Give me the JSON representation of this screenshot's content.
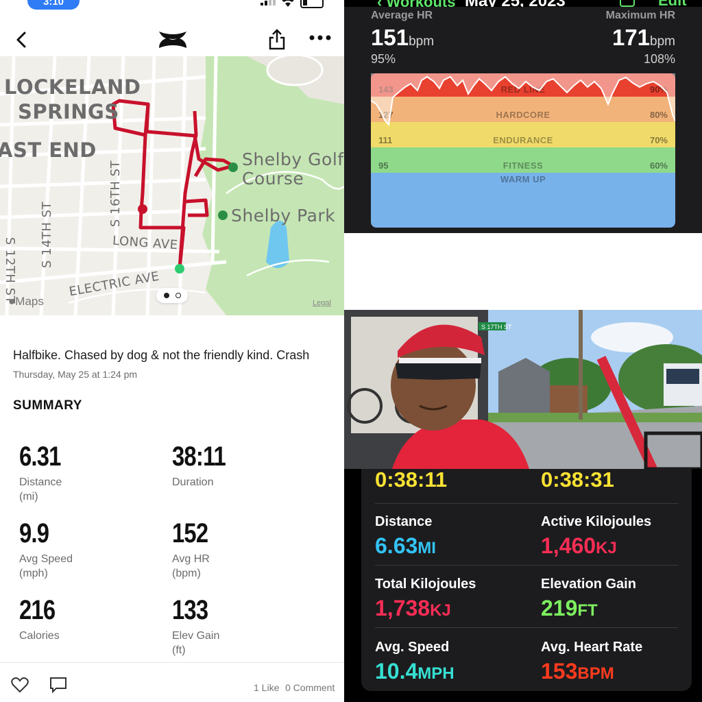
{
  "status_bar": {
    "time": "3:10"
  },
  "left_app": {
    "map": {
      "neighborhoods": [
        "LOCKELAND",
        "SPRINGS",
        "AST END"
      ],
      "streets": [
        "S 16TH ST",
        "S 14TH ST",
        "LONG AVE",
        "ELECTRIC AVE",
        "S 12TH ST"
      ],
      "places": [
        "Shelby Golf",
        "Course",
        "Shelby Park"
      ],
      "maps_brand": "Maps",
      "legal": "Legal"
    },
    "post": {
      "text": "Halfbike. Chased by dog & not the friendly kind.  Crash",
      "date": "Thursday, May 25 at 1:24 pm"
    },
    "summary_title": "SUMMARY",
    "stats": [
      {
        "value": "6.31",
        "label1": "Distance",
        "label2": "(mi)"
      },
      {
        "value": "38:11",
        "label1": "Duration",
        "label2": ""
      },
      {
        "value": "9.9",
        "label1": "Avg Speed",
        "label2": "(mph)"
      },
      {
        "value": "152",
        "label1": "Avg HR",
        "label2": "(bpm)"
      },
      {
        "value": "216",
        "label1": "Calories",
        "label2": ""
      },
      {
        "value": "133",
        "label1": "Elev Gain",
        "label2": "(ft)"
      }
    ],
    "footer": {
      "likes": "1 Like",
      "comments": "0 Comment"
    }
  },
  "heart_rate": {
    "back_label": "Workouts",
    "date": "May 25, 2023",
    "edit_label": "Edit",
    "avg_label": "Average HR",
    "avg_value": "151",
    "max_label": "Maximum HR",
    "max_value": "171",
    "unit": "bpm",
    "avg_pct": "95%",
    "max_pct": "108%",
    "zones": [
      {
        "name": "RED LINE",
        "bpm": "143",
        "pct": "90%",
        "color": "#e8412f"
      },
      {
        "name": "HARDCORE",
        "bpm": "127",
        "pct": "80%",
        "color": "#f2b37a"
      },
      {
        "name": "ENDURANCE",
        "bpm": "111",
        "pct": "70%",
        "color": "#f0db6a"
      },
      {
        "name": "FITNESS",
        "bpm": "95",
        "pct": "60%",
        "color": "#8fd98a"
      },
      {
        "name": "WARM UP",
        "bpm": "",
        "pct": "",
        "color": "#78b2ea"
      }
    ]
  },
  "workout": {
    "workout_time": "0:38:11",
    "elapsed_time": "0:38:31",
    "metrics": [
      {
        "label": "Distance",
        "value": "6.63",
        "unit": "MI",
        "color": "#33c3f5"
      },
      {
        "label": "Active Kilojoules",
        "value": "1,460",
        "unit": "KJ",
        "color": "#fa2d55"
      },
      {
        "label": "Total Kilojoules",
        "value": "1,738",
        "unit": "KJ",
        "color": "#fa2d55"
      },
      {
        "label": "Elevation Gain",
        "value": "219",
        "unit": "FT",
        "color": "#7df05f"
      },
      {
        "label": "Avg. Speed",
        "value": "10.4",
        "unit": "MPH",
        "color": "#36e0d2"
      },
      {
        "label": "Avg. Heart Rate",
        "value": "153",
        "unit": "BPM",
        "color": "#ff3b1f"
      }
    ]
  },
  "photo": {
    "street_sign": "S 17TH ST"
  }
}
